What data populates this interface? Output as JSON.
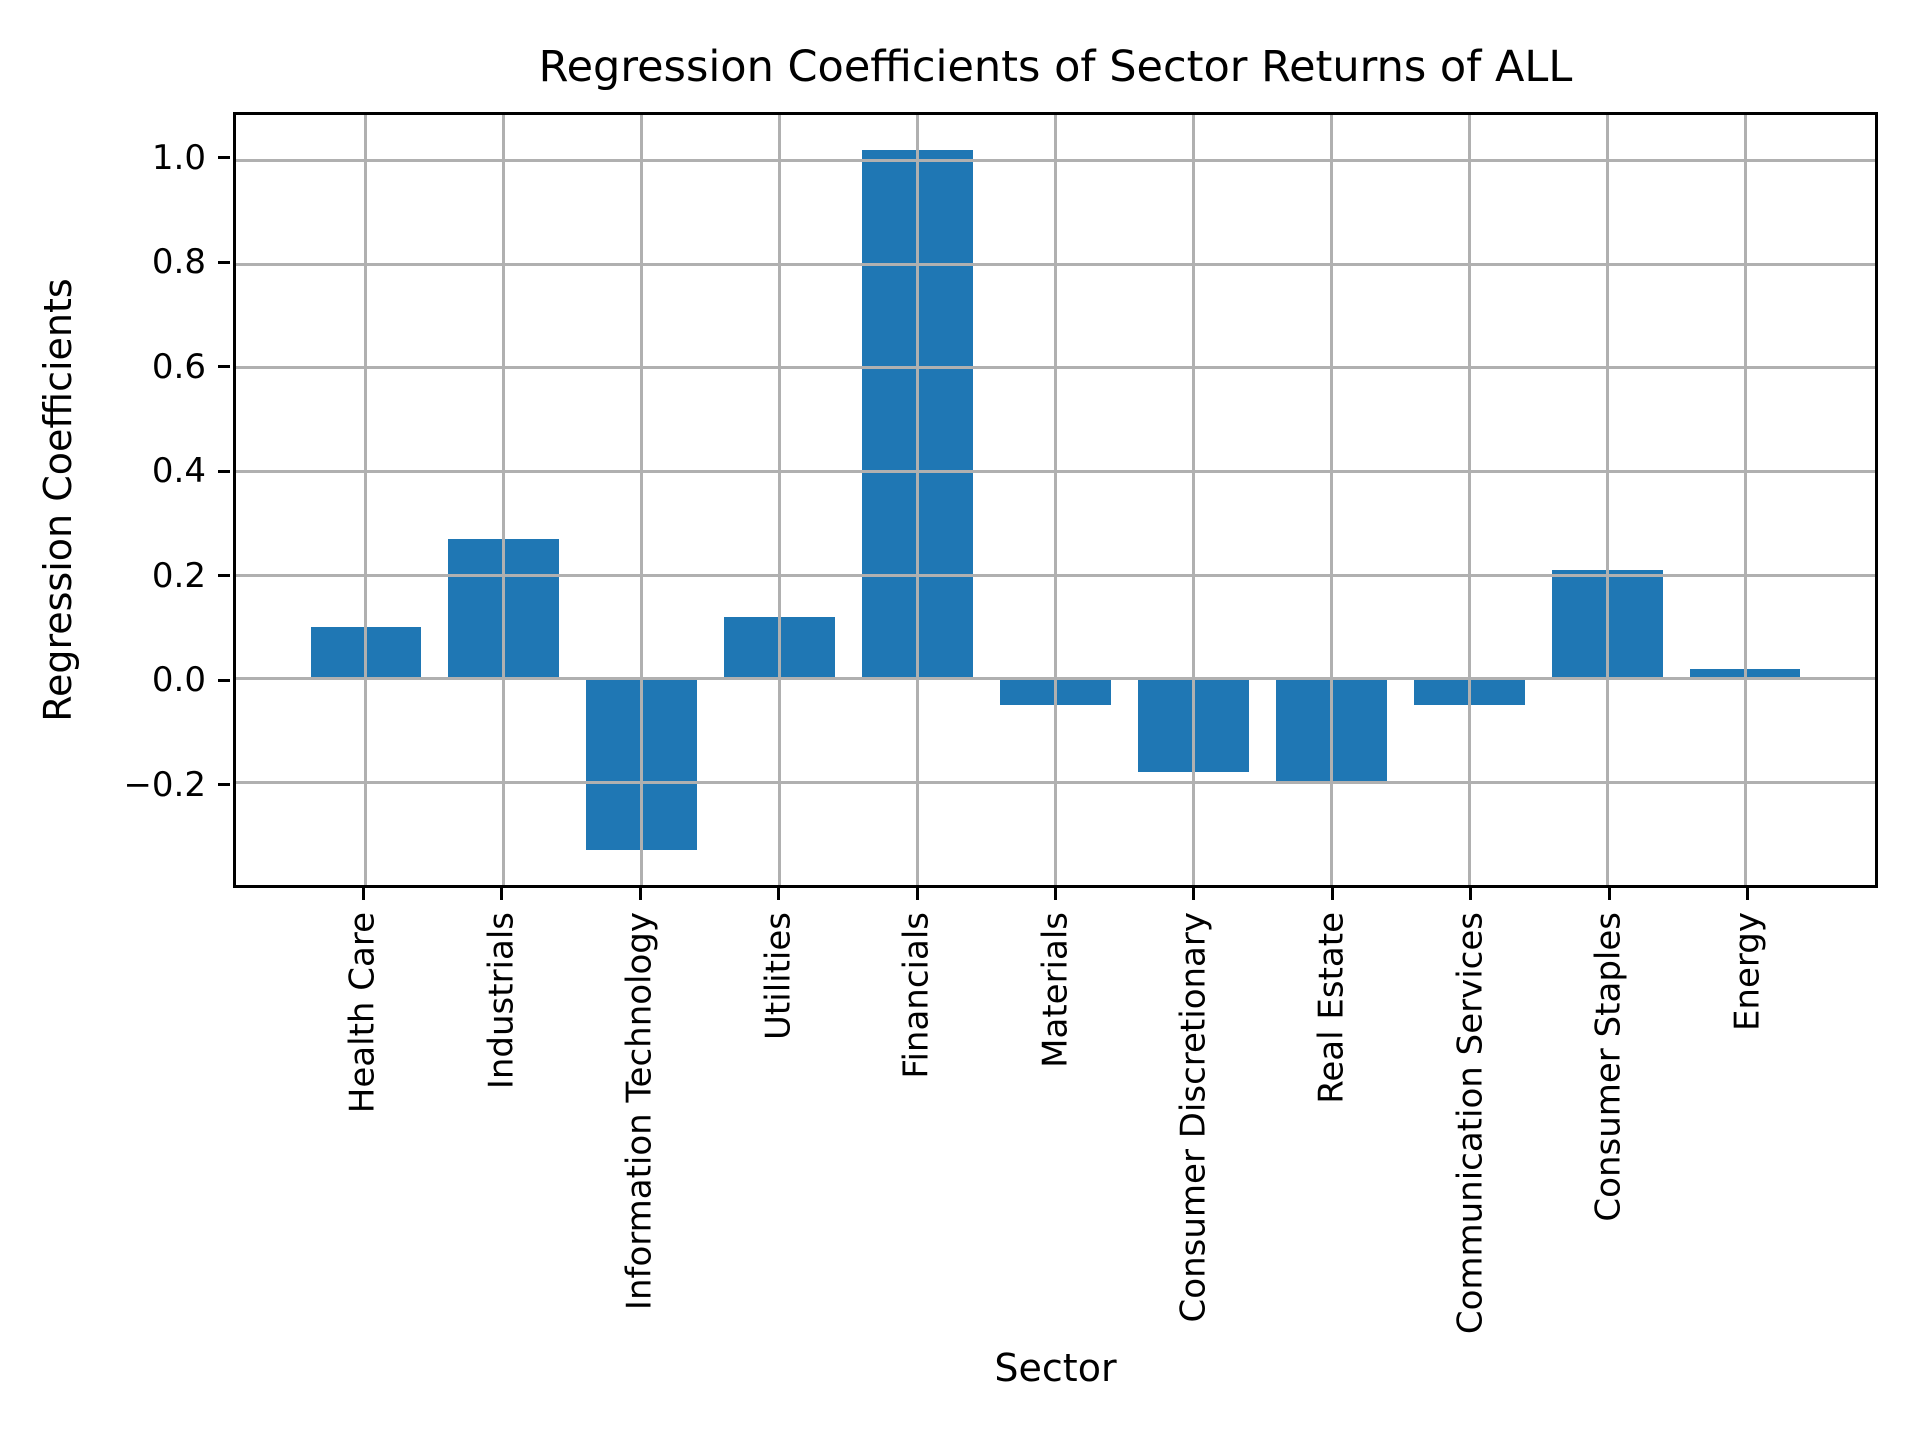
{
  "figure": {
    "background_color": "#ffffff"
  },
  "chart_data": {
    "type": "bar",
    "title": "Regression Coefficients of Sector Returns of ALL",
    "xlabel": "Sector",
    "ylabel": "Regression Coefficients",
    "categories": [
      "Health Care",
      "Industrials",
      "Information Technology",
      "Utilities",
      "Financials",
      "Materials",
      "Consumer Discretionary",
      "Real Estate",
      "Communication Services",
      "Consumer Staples",
      "Energy"
    ],
    "values": [
      0.1,
      0.27,
      -0.33,
      0.12,
      1.02,
      -0.05,
      -0.18,
      -0.2,
      -0.05,
      0.21,
      0.02
    ],
    "yticks": [
      1.0,
      0.8,
      0.6,
      0.4,
      0.2,
      0.0,
      -0.2
    ],
    "ylim": [
      -0.3975,
      1.0875
    ],
    "xlim": [
      -0.94,
      10.94
    ],
    "bar_width": 0.8,
    "bar_color": "#1f77b4",
    "grid": true,
    "grid_color": "#b0b0b0",
    "spine_color": "#000000",
    "xtick_rotation": 90,
    "legend_position": "none"
  }
}
